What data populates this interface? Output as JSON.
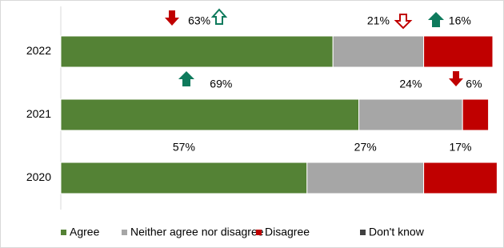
{
  "chart_data": {
    "type": "stacked-bar-horizontal",
    "categories": [
      "2022",
      "2021",
      "2020"
    ],
    "xlim": [
      0,
      100
    ],
    "series": [
      {
        "name": "Agree",
        "color": "#548235",
        "values": [
          63,
          69,
          57
        ],
        "value_labels": [
          "63%",
          "69%",
          "57%"
        ]
      },
      {
        "name": "Neither agree nor disagree",
        "color": "#a6a6a6",
        "values": [
          21,
          24,
          27
        ],
        "value_labels": [
          "21%",
          "24%",
          "27%"
        ]
      },
      {
        "name": "Disagree",
        "color": "#c00000",
        "values": [
          16,
          6,
          17
        ],
        "value_labels": [
          "16%",
          "6%",
          "17%"
        ]
      },
      {
        "name": "Don't know",
        "color": "#404040",
        "values": [
          0,
          0,
          0
        ]
      }
    ],
    "legend": "bottom"
  }
}
